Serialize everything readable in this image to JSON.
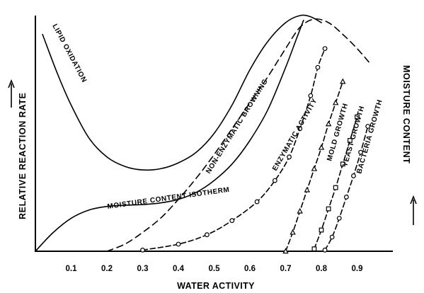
{
  "chart_data": {
    "type": "line",
    "title": "",
    "xlabel": "WATER ACTIVITY",
    "ylabel": "RELATIVE REACTION RATE",
    "ylabel_right": "MOISTURE CONTENT",
    "xlim": [
      0,
      1.0
    ],
    "ylim": [
      0,
      100
    ],
    "grid": false,
    "x_ticks": [
      "0.1",
      "0.2",
      "0.3",
      "0.4",
      "0.5",
      "0.6",
      "0.7",
      "0.8",
      "0.9"
    ],
    "series": [
      {
        "name": "LIPID OXIDATION",
        "style": "solid",
        "color": "#000000",
        "x": [
          0.02,
          0.06,
          0.1,
          0.15,
          0.2,
          0.25,
          0.3,
          0.35,
          0.4,
          0.45,
          0.5,
          0.55,
          0.6,
          0.65,
          0.7,
          0.74,
          0.77,
          0.8
        ],
        "y": [
          92,
          76,
          62,
          48,
          40,
          36,
          34.5,
          35,
          37.5,
          42,
          50,
          62,
          77,
          89,
          97,
          100,
          99.5,
          97
        ]
      },
      {
        "name": "NON-ENZYMATIC BROWNING",
        "style": "dashed",
        "color": "#000000",
        "x": [
          0.2,
          0.25,
          0.3,
          0.35,
          0.4,
          0.45,
          0.5,
          0.55,
          0.6,
          0.65,
          0.7,
          0.74,
          0.78,
          0.82,
          0.86,
          0.9,
          0.94
        ],
        "y": [
          0,
          3,
          8,
          14,
          22,
          31,
          41,
          52,
          63,
          74,
          86,
          95,
          98.5,
          97,
          92,
          86,
          79
        ]
      },
      {
        "name": "MOISTURE CONTENT ISOTHERM",
        "style": "solid",
        "color": "#000000",
        "x": [
          0.0,
          0.05,
          0.1,
          0.15,
          0.2,
          0.25,
          0.3,
          0.35,
          0.4,
          0.45,
          0.5,
          0.55,
          0.6,
          0.65,
          0.7,
          0.73,
          0.75
        ],
        "y": [
          0,
          8,
          14,
          17.5,
          19,
          19.5,
          19.8,
          20.5,
          22,
          25,
          30,
          37,
          47,
          60,
          78,
          90,
          98
        ]
      },
      {
        "name": "ENZYMATIC ACTIVITY",
        "style": "dash-dot-circle",
        "color": "#000000",
        "x": [
          0.3,
          0.4,
          0.48,
          0.55,
          0.62,
          0.67,
          0.71,
          0.74,
          0.77,
          0.79,
          0.81
        ],
        "y": [
          0.5,
          3,
          7,
          13,
          21,
          30,
          40,
          52,
          66,
          78,
          86
        ]
      },
      {
        "name": "MOLD GROWTH",
        "style": "dash-dot-triangle",
        "color": "#000000",
        "x": [
          0.7,
          0.72,
          0.74,
          0.76,
          0.78,
          0.8,
          0.82,
          0.84,
          0.86
        ],
        "y": [
          0,
          8,
          17,
          26,
          35,
          44,
          54,
          63,
          72
        ]
      },
      {
        "name": "YEAST GROWTH",
        "style": "dash-dot-square",
        "color": "#000000",
        "x": [
          0.78,
          0.8,
          0.82,
          0.84,
          0.86,
          0.88,
          0.9
        ],
        "y": [
          1,
          9,
          18,
          27,
          37,
          47,
          57
        ]
      },
      {
        "name": "BACTERIA GROWTH",
        "style": "dash-dot-circle",
        "color": "#000000",
        "x": [
          0.81,
          0.83,
          0.85,
          0.87,
          0.89,
          0.91,
          0.93
        ],
        "y": [
          0.5,
          6,
          14,
          23,
          32,
          42,
          53
        ]
      }
    ]
  }
}
